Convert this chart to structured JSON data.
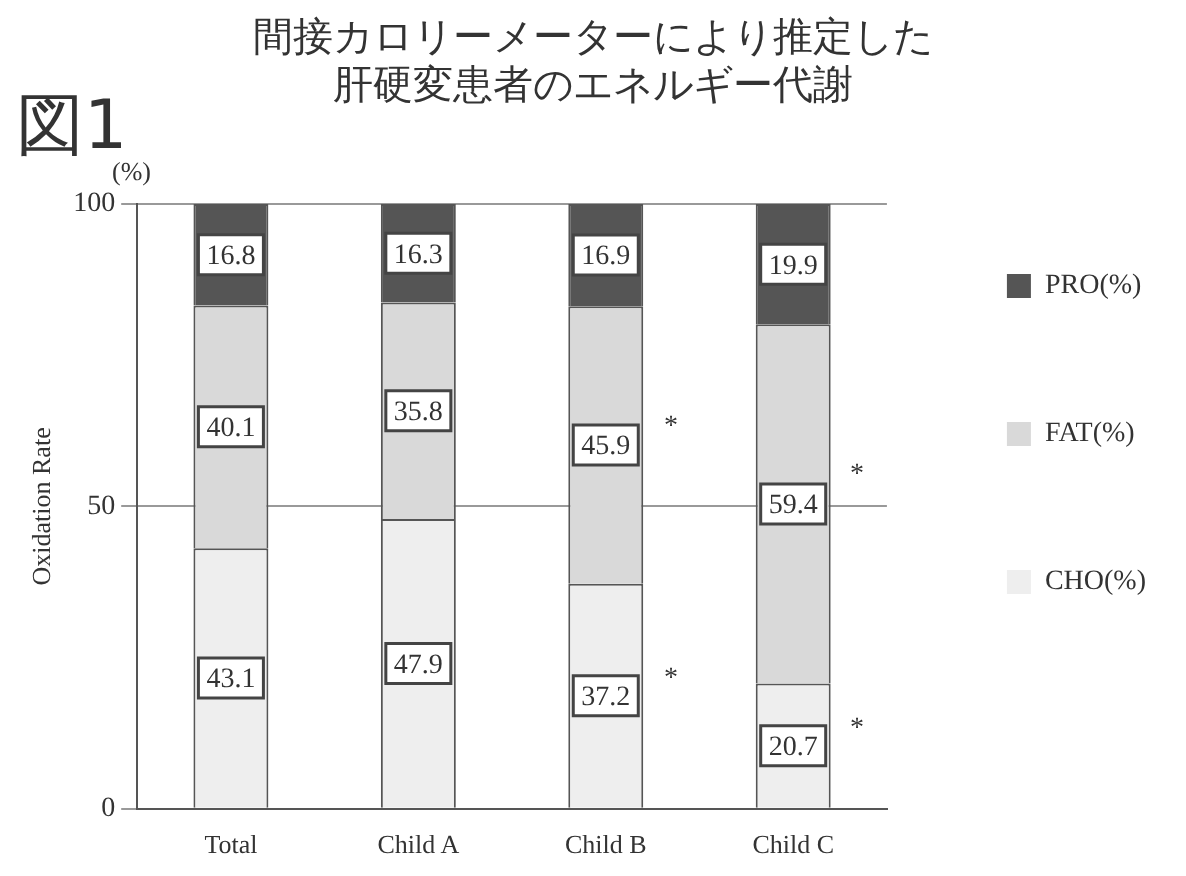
{
  "chart_data": {
    "type": "bar",
    "title": [
      "間接カロリーメーターにより推定した",
      "肝硬変患者のエネルギー代謝"
    ],
    "ylabel": "Oxidation Rate",
    "stacked": true,
    "categories": [
      "Total",
      "Child A",
      "Child B",
      "Child C"
    ],
    "series": [
      {
        "name": "CHO(%)",
        "color": "#eeeeee",
        "values": [
          43.1,
          47.9,
          37.2,
          20.7
        ]
      },
      {
        "name": "FAT(%)",
        "color": "#d9d9d9",
        "values": [
          40.1,
          35.8,
          45.9,
          59.4
        ]
      },
      {
        "name": "PRO(%)",
        "color": "#555555",
        "values": [
          16.8,
          16.3,
          16.9,
          19.9
        ]
      }
    ],
    "ylim": [
      0,
      100
    ],
    "yticks": [
      0,
      50,
      100
    ],
    "grid": "y",
    "legend": "right",
    "data_labels": true,
    "annotations": [
      "図1",
      "(%)",
      "*",
      "*",
      "*",
      "*"
    ]
  }
}
